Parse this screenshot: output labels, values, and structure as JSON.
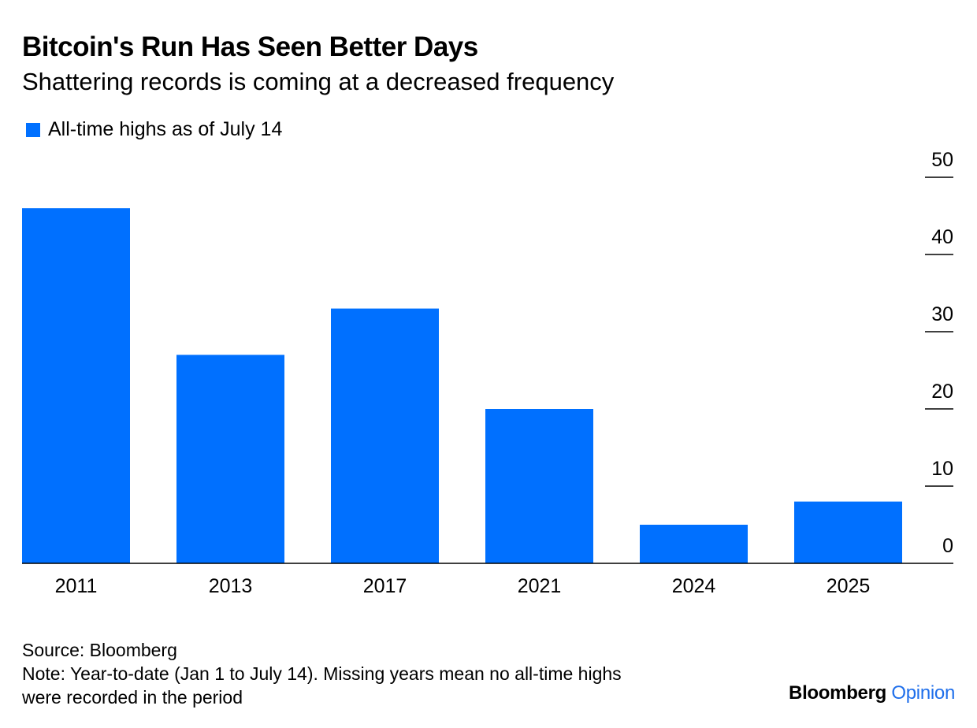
{
  "colors": {
    "bar": "#0070ff",
    "text": "#000000",
    "brand_accent": "#1f6feb"
  },
  "chart_data": {
    "type": "bar",
    "title": "Bitcoin's Run Has Seen Better Days",
    "subtitle": "Shattering records is coming at a decreased frequency",
    "categories": [
      "2011",
      "2013",
      "2017",
      "2021",
      "2024",
      "2025"
    ],
    "series": [
      {
        "name": "All-time highs as of July 14",
        "values": [
          46,
          27,
          33,
          20,
          5,
          8
        ]
      }
    ],
    "ylim": [
      0,
      50
    ],
    "yticks": [
      0,
      10,
      20,
      30,
      40,
      50
    ],
    "y_axis_position": "right",
    "legend": "top-left",
    "grid": false
  },
  "footer": {
    "source": "Source: Bloomberg",
    "note_line1": "Note: Year-to-date (Jan 1 to July 14). Missing years mean no all-time highs",
    "note_line2": "were recorded in the period",
    "brand_bold": "Bloomberg",
    "brand_light": "Opinion"
  }
}
